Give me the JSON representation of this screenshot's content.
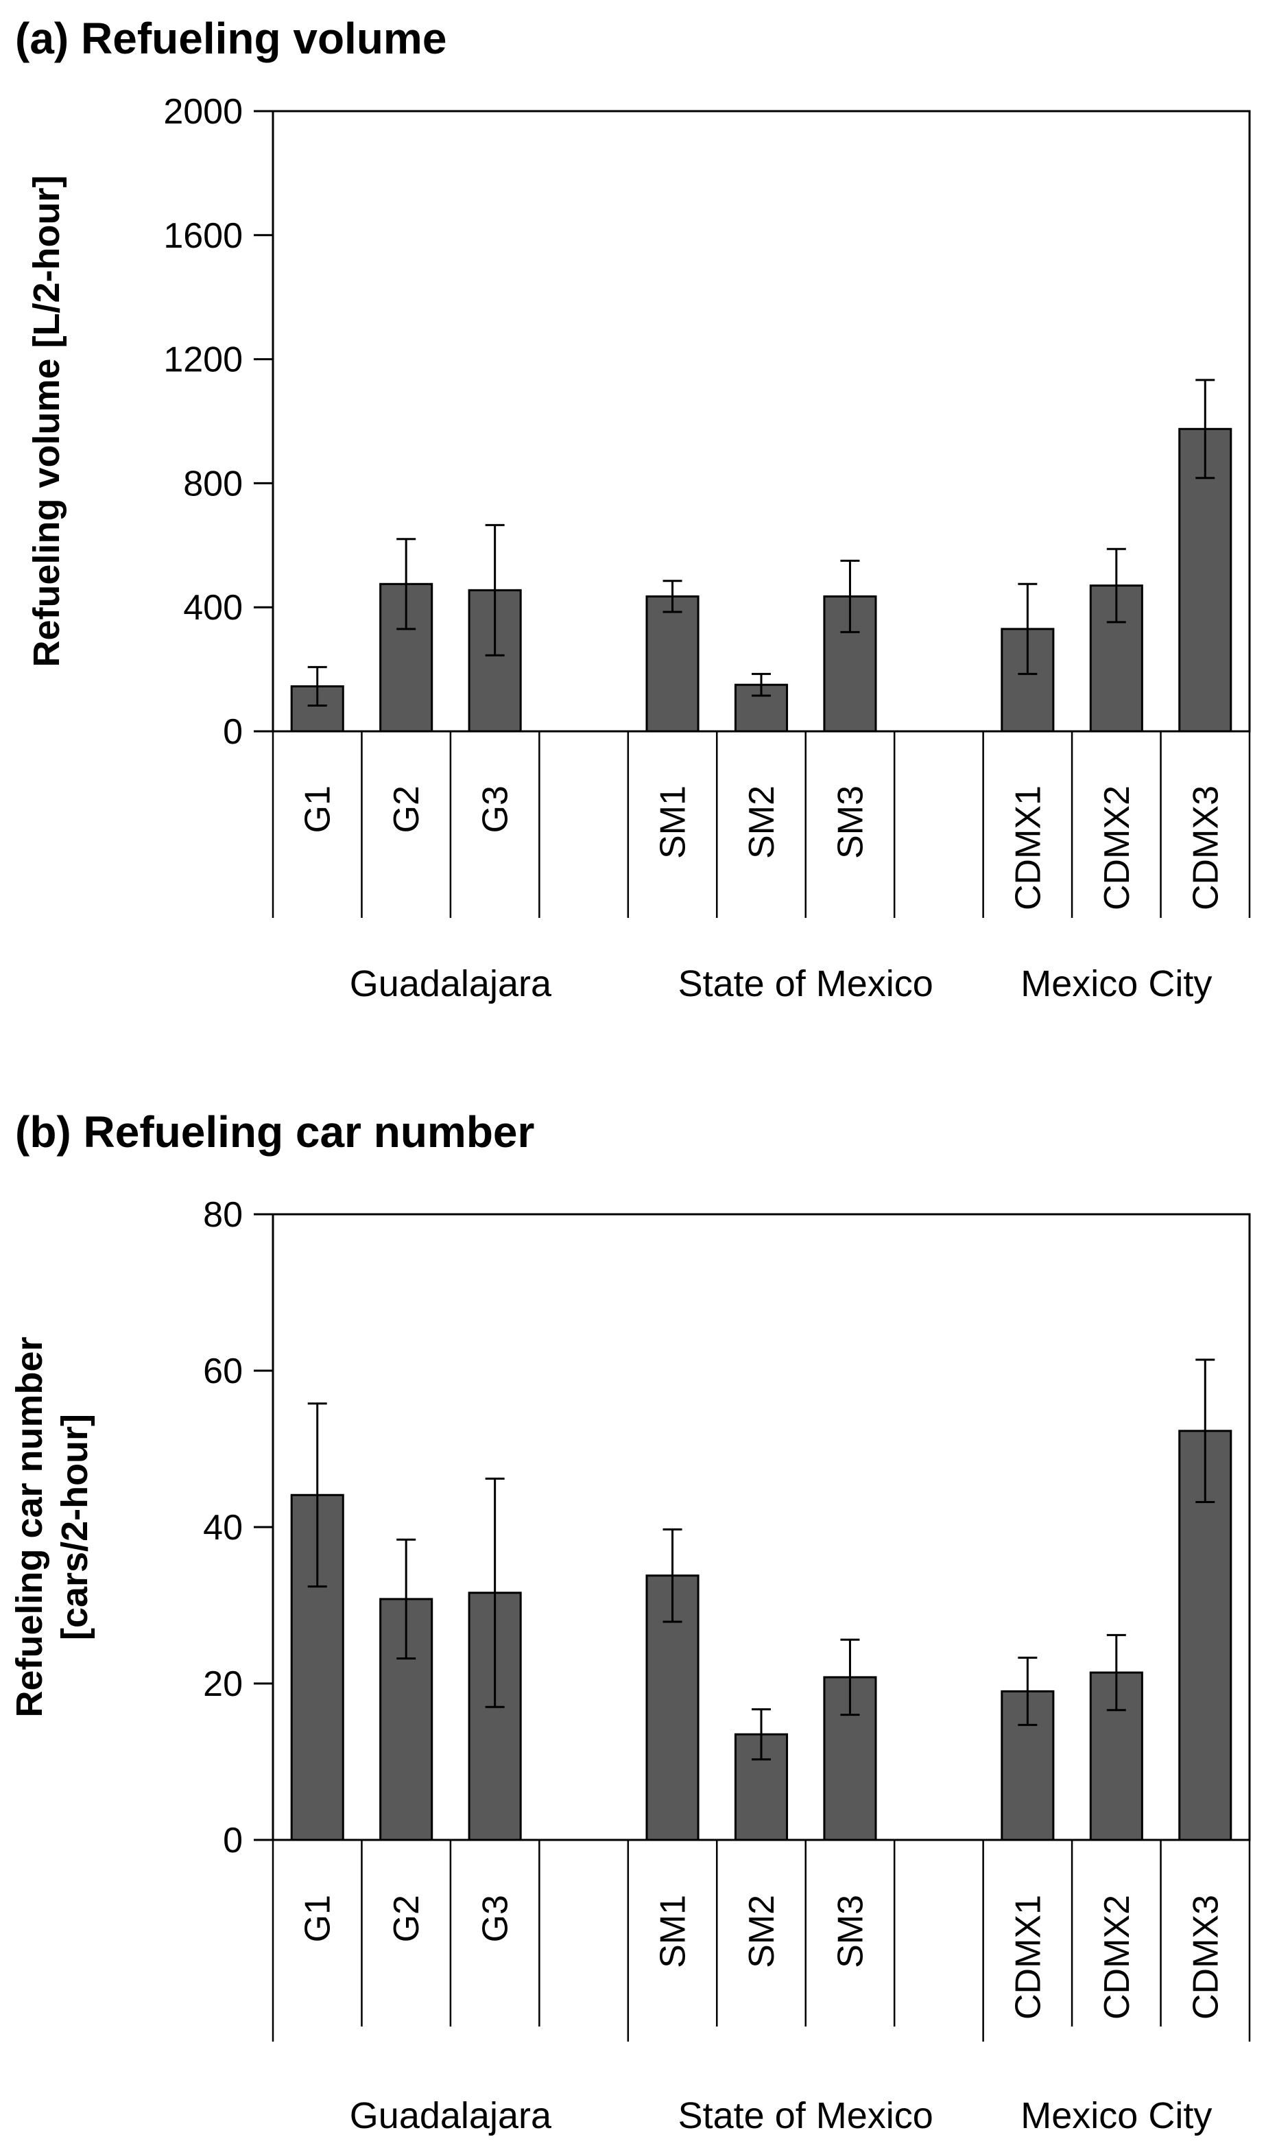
{
  "chart_data": [
    {
      "type": "bar",
      "title": "(a) Refueling volume",
      "ylabel": "Refueling volume [L/2-hour]",
      "ylabel_lines": [
        "Refueling volume [L/2-hour]"
      ],
      "ylim": [
        0,
        2000
      ],
      "yticks": [
        "0",
        "400",
        "800",
        "1200",
        "1600",
        "2000"
      ],
      "groups": [
        {
          "name": "Guadalajara",
          "categories": [
            "G1",
            "G2",
            "G3",
            ""
          ]
        },
        {
          "name": "State of Mexico",
          "categories": [
            "SM1",
            "SM2",
            "SM3",
            ""
          ]
        },
        {
          "name": "Mexico City",
          "categories": [
            "CDMX1",
            "CDMX2",
            "CDMX3"
          ]
        }
      ],
      "categories": [
        "G1",
        "G2",
        "G3",
        "",
        "SM1",
        "SM2",
        "SM3",
        "",
        "CDMX1",
        "CDMX2",
        "CDMX3"
      ],
      "values": [
        145,
        475,
        455,
        null,
        435,
        150,
        435,
        null,
        330,
        470,
        975
      ],
      "errors": [
        62,
        145,
        210,
        null,
        50,
        35,
        115,
        null,
        145,
        118,
        158
      ]
    },
    {
      "type": "bar",
      "title": "(b) Refueling car number",
      "ylabel": "Refueling car number [cars/2-hour]",
      "ylabel_lines": [
        "Refueling car number",
        "[cars/2-hour]"
      ],
      "ylim": [
        0,
        80
      ],
      "yticks": [
        "0",
        "20",
        "40",
        "60",
        "80"
      ],
      "groups": [
        {
          "name": "Guadalajara",
          "categories": [
            "G1",
            "G2",
            "G3",
            ""
          ]
        },
        {
          "name": "State of Mexico",
          "categories": [
            "SM1",
            "SM2",
            "SM3",
            ""
          ]
        },
        {
          "name": "Mexico City",
          "categories": [
            "CDMX1",
            "CDMX2",
            "CDMX3"
          ]
        }
      ],
      "categories": [
        "G1",
        "G2",
        "G3",
        "",
        "SM1",
        "SM2",
        "SM3",
        "",
        "CDMX1",
        "CDMX2",
        "CDMX3"
      ],
      "values": [
        44.1,
        30.8,
        31.6,
        null,
        33.8,
        13.5,
        20.8,
        null,
        19,
        21.4,
        52.3
      ],
      "errors": [
        11.7,
        7.6,
        14.6,
        null,
        5.9,
        3.2,
        4.8,
        null,
        4.3,
        4.8,
        9.1
      ]
    }
  ]
}
